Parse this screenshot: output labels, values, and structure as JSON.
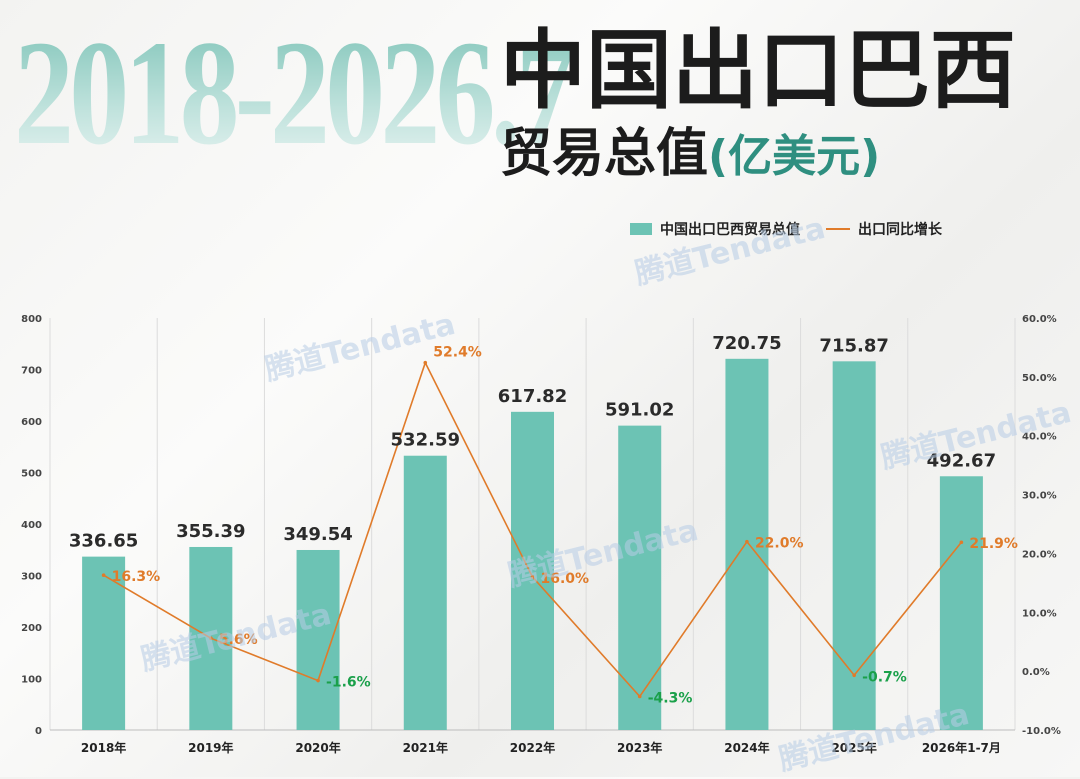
{
  "header": {
    "years": "2018-2026.7",
    "title": "中国出口巴西",
    "subtitle": "贸易总值",
    "unit": "(亿美元)"
  },
  "legend": {
    "bar_label": "中国出口巴西贸易总值",
    "line_label": "出口同比增长"
  },
  "watermark": "腾道Tendata",
  "colors": {
    "bar": "#6cc3b4",
    "line": "#e07b2a",
    "positive_label": "#e07b2a",
    "negative_label": "#1aa04a"
  },
  "chart_data": {
    "type": "bar",
    "categories": [
      "2018年",
      "2019年",
      "2020年",
      "2021年",
      "2022年",
      "2023年",
      "2024年",
      "2025年",
      "2026年1-7月"
    ],
    "series": [
      {
        "name": "中国出口巴西贸易总值",
        "type": "bar",
        "axis": "left",
        "values": [
          336.65,
          355.39,
          349.54,
          532.59,
          617.82,
          591.02,
          720.75,
          715.87,
          492.67
        ],
        "labels": [
          "336.65",
          "355.39",
          "349.54",
          "532.59",
          "617.82",
          "591.02",
          "720.75",
          "715.87",
          "492.67"
        ]
      },
      {
        "name": "出口同比增长",
        "type": "line",
        "axis": "right",
        "values": [
          16.3,
          5.6,
          -1.6,
          52.4,
          16.0,
          -4.3,
          22.0,
          -0.7,
          21.9
        ],
        "labels": [
          "16.3%",
          "5.6%",
          "-1.6%",
          "52.4%",
          "16.0%",
          "-4.3%",
          "22.0%",
          "-0.7%",
          "21.9%"
        ]
      }
    ],
    "y_left": {
      "min": 0,
      "max": 800,
      "ticks": [
        "0",
        "100",
        "200",
        "300",
        "400",
        "500",
        "600",
        "700",
        "800"
      ]
    },
    "y_right": {
      "min": -10,
      "max": 60,
      "ticks": [
        "-10.0%",
        "0.0%",
        "10.0%",
        "20.0%",
        "30.0%",
        "40.0%",
        "50.0%",
        "60.0%"
      ]
    },
    "grid": "vertical",
    "legend_position": "top-right"
  }
}
